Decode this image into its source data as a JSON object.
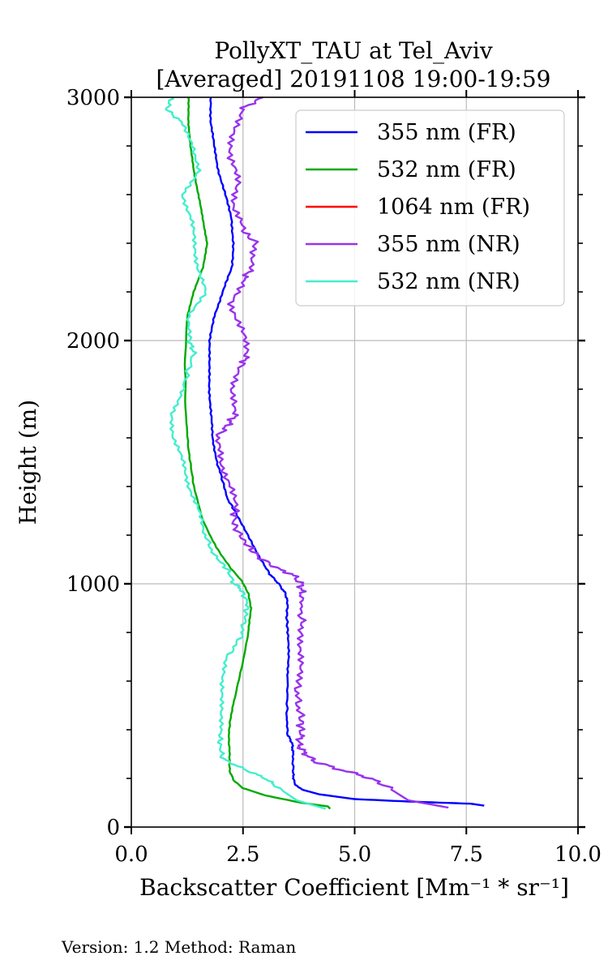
{
  "chart_data": {
    "type": "line",
    "title_line1": "PollyXT_TAU at Tel_Aviv",
    "title_line2": "[Averaged] 20191108 19:00-19:59",
    "xlabel": "Backscatter Coefficient [Mm⁻¹ * sr⁻¹]",
    "ylabel": "Height (m)",
    "xlim": [
      0,
      10
    ],
    "ylim": [
      0,
      3000
    ],
    "xticks": [
      "0.0",
      "2.5",
      "5.0",
      "7.5",
      "10.0"
    ],
    "yticks": [
      "0",
      "1000",
      "2000",
      "3000"
    ],
    "grid": true,
    "legend_position": "top-right",
    "series": [
      {
        "name": "355 nm (FR)",
        "color": "#0000ff",
        "jitter": 0.02,
        "points": [
          [
            7.9,
            88
          ],
          [
            7.6,
            96
          ],
          [
            6.2,
            105
          ],
          [
            5.0,
            115
          ],
          [
            4.2,
            135
          ],
          [
            3.8,
            155
          ],
          [
            3.65,
            180
          ],
          [
            3.62,
            220
          ],
          [
            3.62,
            300
          ],
          [
            3.6,
            345
          ],
          [
            3.5,
            380
          ],
          [
            3.48,
            450
          ],
          [
            3.5,
            600
          ],
          [
            3.52,
            700
          ],
          [
            3.5,
            800
          ],
          [
            3.48,
            870
          ],
          [
            3.5,
            920
          ],
          [
            3.45,
            960
          ],
          [
            3.3,
            1000
          ],
          [
            3.1,
            1040
          ],
          [
            2.9,
            1100
          ],
          [
            2.6,
            1200
          ],
          [
            2.35,
            1290
          ],
          [
            2.15,
            1350
          ],
          [
            2.05,
            1420
          ],
          [
            1.92,
            1500
          ],
          [
            1.82,
            1600
          ],
          [
            1.78,
            1700
          ],
          [
            1.75,
            1800
          ],
          [
            1.74,
            1900
          ],
          [
            1.76,
            2000
          ],
          [
            1.85,
            2100
          ],
          [
            2.05,
            2200
          ],
          [
            2.25,
            2300
          ],
          [
            2.28,
            2400
          ],
          [
            2.25,
            2500
          ],
          [
            2.1,
            2600
          ],
          [
            1.95,
            2700
          ],
          [
            1.85,
            2800
          ],
          [
            1.78,
            2900
          ],
          [
            1.78,
            3000
          ]
        ]
      },
      {
        "name": "532 nm (FR)",
        "color": "#00aa00",
        "jitter": 0.01,
        "points": [
          [
            4.45,
            75
          ],
          [
            4.4,
            85
          ],
          [
            3.8,
            100
          ],
          [
            3.0,
            130
          ],
          [
            2.5,
            160
          ],
          [
            2.3,
            190
          ],
          [
            2.2,
            230
          ],
          [
            2.2,
            300
          ],
          [
            2.18,
            380
          ],
          [
            2.22,
            450
          ],
          [
            2.35,
            560
          ],
          [
            2.5,
            680
          ],
          [
            2.62,
            800
          ],
          [
            2.68,
            900
          ],
          [
            2.62,
            960
          ],
          [
            2.48,
            1010
          ],
          [
            2.2,
            1070
          ],
          [
            1.9,
            1150
          ],
          [
            1.6,
            1260
          ],
          [
            1.4,
            1400
          ],
          [
            1.28,
            1550
          ],
          [
            1.22,
            1700
          ],
          [
            1.2,
            1900
          ],
          [
            1.25,
            2100
          ],
          [
            1.4,
            2200
          ],
          [
            1.6,
            2300
          ],
          [
            1.7,
            2400
          ],
          [
            1.6,
            2500
          ],
          [
            1.5,
            2600
          ],
          [
            1.4,
            2700
          ],
          [
            1.32,
            2800
          ],
          [
            1.28,
            2900
          ],
          [
            1.28,
            3000
          ]
        ]
      },
      {
        "name": "1064 nm (FR)",
        "color": "#ff0000",
        "points": []
      },
      {
        "name": "355 nm (NR)",
        "color": "#9933ee",
        "jitter": 0.1,
        "points": [
          [
            7.1,
            80
          ],
          [
            6.2,
            110
          ],
          [
            5.6,
            180
          ],
          [
            5.2,
            210
          ],
          [
            4.6,
            240
          ],
          [
            4.1,
            270
          ],
          [
            3.85,
            310
          ],
          [
            3.75,
            340
          ],
          [
            3.8,
            380
          ],
          [
            3.8,
            440
          ],
          [
            3.72,
            520
          ],
          [
            3.72,
            600
          ],
          [
            3.8,
            700
          ],
          [
            3.82,
            800
          ],
          [
            3.8,
            880
          ],
          [
            3.82,
            950
          ],
          [
            3.8,
            1000
          ],
          [
            3.6,
            1040
          ],
          [
            3.3,
            1060
          ],
          [
            2.85,
            1110
          ],
          [
            2.55,
            1170
          ],
          [
            2.3,
            1240
          ],
          [
            2.32,
            1300
          ],
          [
            2.25,
            1400
          ],
          [
            2.0,
            1500
          ],
          [
            1.9,
            1600
          ],
          [
            2.15,
            1650
          ],
          [
            2.35,
            1700
          ],
          [
            2.2,
            1800
          ],
          [
            2.5,
            1900
          ],
          [
            2.6,
            1950
          ],
          [
            2.45,
            2050
          ],
          [
            2.25,
            2150
          ],
          [
            2.5,
            2250
          ],
          [
            2.7,
            2300
          ],
          [
            2.8,
            2400
          ],
          [
            2.5,
            2450
          ],
          [
            2.3,
            2550
          ],
          [
            2.4,
            2650
          ],
          [
            2.2,
            2750
          ],
          [
            2.3,
            2850
          ],
          [
            2.45,
            2950
          ],
          [
            2.95,
            3000
          ]
        ]
      },
      {
        "name": "532 nm (NR)",
        "color": "#44eecc",
        "jitter": 0.06,
        "points": [
          [
            4.35,
            75
          ],
          [
            3.7,
            110
          ],
          [
            3.3,
            160
          ],
          [
            3.0,
            200
          ],
          [
            2.5,
            240
          ],
          [
            2.05,
            280
          ],
          [
            1.98,
            340
          ],
          [
            2.0,
            400
          ],
          [
            2.05,
            500
          ],
          [
            2.0,
            600
          ],
          [
            2.15,
            700
          ],
          [
            2.45,
            780
          ],
          [
            2.55,
            860
          ],
          [
            2.6,
            920
          ],
          [
            2.45,
            980
          ],
          [
            2.3,
            1000
          ],
          [
            2.15,
            1060
          ],
          [
            1.85,
            1120
          ],
          [
            1.65,
            1200
          ],
          [
            1.5,
            1300
          ],
          [
            1.3,
            1400
          ],
          [
            1.15,
            1500
          ],
          [
            0.95,
            1600
          ],
          [
            0.9,
            1700
          ],
          [
            1.15,
            1800
          ],
          [
            1.4,
            1950
          ],
          [
            1.3,
            2000
          ],
          [
            1.3,
            2100
          ],
          [
            1.65,
            2200
          ],
          [
            1.5,
            2300
          ],
          [
            1.4,
            2400
          ],
          [
            1.35,
            2500
          ],
          [
            1.15,
            2600
          ],
          [
            1.5,
            2700
          ],
          [
            1.4,
            2800
          ],
          [
            1.1,
            2900
          ],
          [
            0.8,
            2950
          ],
          [
            0.9,
            3000
          ]
        ]
      }
    ]
  },
  "footer": "Version: 1.2  Method: Raman"
}
